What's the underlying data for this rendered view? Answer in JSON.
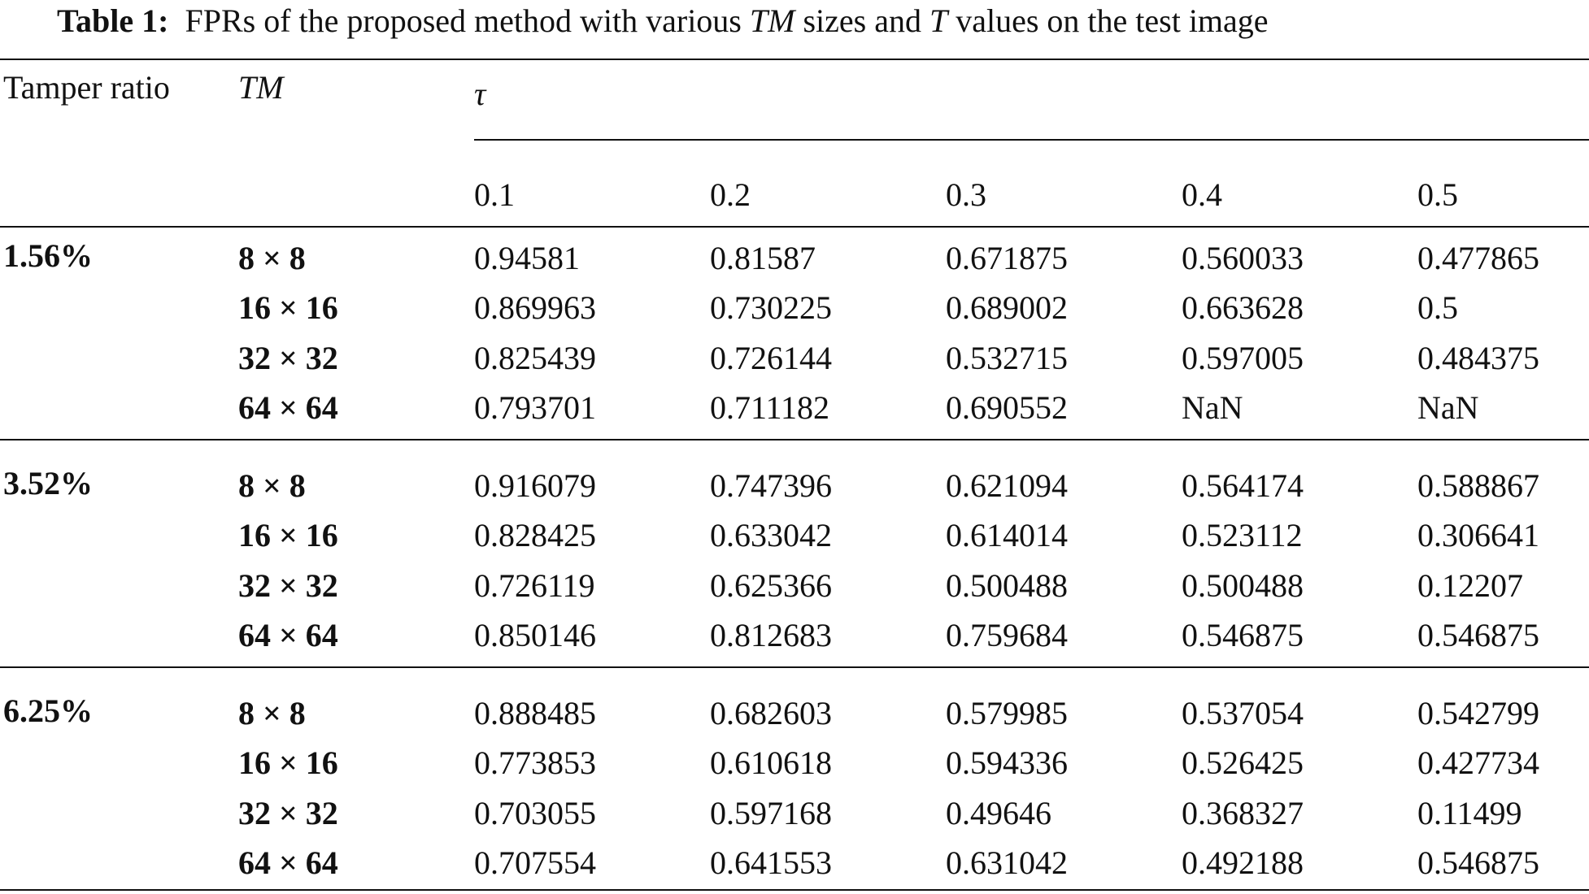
{
  "caption": {
    "label": "Table 1:",
    "text_before": "FPRs of the proposed method with various",
    "tm": "TM",
    "text_mid": "sizes and",
    "t": "T",
    "text_after": "values on the test image"
  },
  "header": {
    "tamper_ratio": "Tamper ratio",
    "tm": "TM",
    "tau": "τ",
    "tau_values": [
      "0.1",
      "0.2",
      "0.3",
      "0.4",
      "0.5"
    ]
  },
  "groups": [
    {
      "ratio": "1.56%",
      "rows": [
        {
          "tm": "8 × 8",
          "values": [
            "0.94581",
            "0.81587",
            "0.671875",
            "0.560033",
            "0.477865"
          ]
        },
        {
          "tm": "16 × 16",
          "values": [
            "0.869963",
            "0.730225",
            "0.689002",
            "0.663628",
            "0.5"
          ]
        },
        {
          "tm": "32 × 32",
          "values": [
            "0.825439",
            "0.726144",
            "0.532715",
            "0.597005",
            "0.484375"
          ]
        },
        {
          "tm": "64 × 64",
          "values": [
            "0.793701",
            "0.711182",
            "0.690552",
            "NaN",
            "NaN"
          ]
        }
      ]
    },
    {
      "ratio": "3.52%",
      "rows": [
        {
          "tm": "8 × 8",
          "values": [
            "0.916079",
            "0.747396",
            "0.621094",
            "0.564174",
            "0.588867"
          ]
        },
        {
          "tm": "16 × 16",
          "values": [
            "0.828425",
            "0.633042",
            "0.614014",
            "0.523112",
            "0.306641"
          ]
        },
        {
          "tm": "32 × 32",
          "values": [
            "0.726119",
            "0.625366",
            "0.500488",
            "0.500488",
            "0.12207"
          ]
        },
        {
          "tm": "64 × 64",
          "values": [
            "0.850146",
            "0.812683",
            "0.759684",
            "0.546875",
            "0.546875"
          ]
        }
      ]
    },
    {
      "ratio": "6.25%",
      "rows": [
        {
          "tm": "8 × 8",
          "values": [
            "0.888485",
            "0.682603",
            "0.579985",
            "0.537054",
            "0.542799"
          ]
        },
        {
          "tm": "16 × 16",
          "values": [
            "0.773853",
            "0.610618",
            "0.594336",
            "0.526425",
            "0.427734"
          ]
        },
        {
          "tm": "32 × 32",
          "values": [
            "0.703055",
            "0.597168",
            "0.49646",
            "0.368327",
            "0.11499"
          ]
        },
        {
          "tm": "64 × 64",
          "values": [
            "0.707554",
            "0.641553",
            "0.631042",
            "0.492188",
            "0.546875"
          ]
        }
      ]
    }
  ]
}
